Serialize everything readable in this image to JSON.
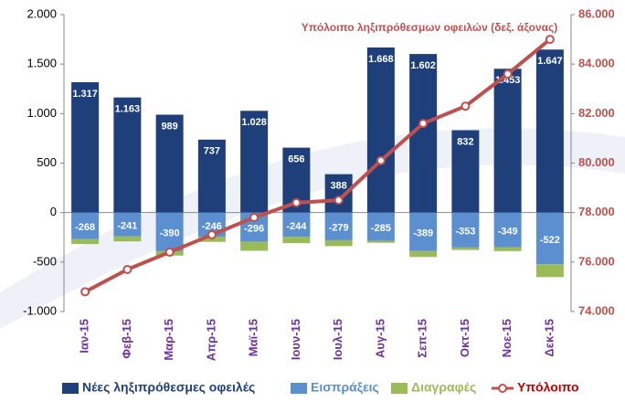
{
  "chart_data": {
    "type": "bar",
    "annotation": "Υπόλοιπο ληξιπρόθεσμων οφειλών (δεξ. άξονας)",
    "categories": [
      "Ιαν-15",
      "Φεβ-15",
      "Μαρ-15",
      "Απρ-15",
      "Μαϊ-15",
      "Ιουν-15",
      "Ιουλ-15",
      "Αυγ-15",
      "Σεπ-15",
      "Οκτ-15",
      "Νοε-15",
      "Δεκ-15"
    ],
    "series": [
      {
        "name": "Νέες ληξιπρόθεσμες οφειλές",
        "type": "bar",
        "color": "#1f3f7a",
        "values": [
          1317,
          1163,
          989,
          737,
          1028,
          656,
          388,
          1668,
          1602,
          832,
          1453,
          1647
        ],
        "value_labels": [
          "1.317",
          "1.163",
          "989",
          "737",
          "1.028",
          "656",
          "388",
          "1.668",
          "1.602",
          "832",
          "1.453",
          "1.647"
        ]
      },
      {
        "name": "Εισπράξεις",
        "type": "bar",
        "color": "#5b8fd0",
        "values": [
          -268,
          -241,
          -390,
          -246,
          -296,
          -244,
          -279,
          -285,
          -389,
          -353,
          -349,
          -522
        ]
      },
      {
        "name": "Διαγραφές",
        "type": "bar",
        "color": "#9bbb59",
        "values": [
          -50,
          -50,
          -45,
          -50,
          -90,
          -65,
          -60,
          -20,
          -60,
          -25,
          -40,
          -130
        ]
      },
      {
        "name": "Υπόλοιπο",
        "type": "line",
        "axis": "y2",
        "color": "#c0504d",
        "values": [
          74800,
          75700,
          76400,
          77100,
          77800,
          78400,
          78500,
          80100,
          81600,
          82300,
          83600,
          85000
        ]
      }
    ],
    "ylim": [
      -1000,
      2000
    ],
    "yticks": [
      {
        "value": -1000,
        "label": "-1.000"
      },
      -500,
      0,
      500,
      {
        "value": 1000,
        "label": "1.000"
      },
      {
        "value": 1500,
        "label": "1.500"
      },
      {
        "value": 2000,
        "label": "2.000"
      }
    ],
    "y2lim": [
      74000,
      86000
    ],
    "y2ticks": [
      {
        "value": 74000,
        "label": "74.000"
      },
      {
        "value": 76000,
        "label": "76.000"
      },
      {
        "value": 78000,
        "label": "78.000"
      },
      {
        "value": 80000,
        "label": "80.000"
      },
      {
        "value": 82000,
        "label": "82.000"
      },
      {
        "value": 84000,
        "label": "84.000"
      },
      {
        "value": 86000,
        "label": "86.000"
      }
    ],
    "grid": false
  }
}
